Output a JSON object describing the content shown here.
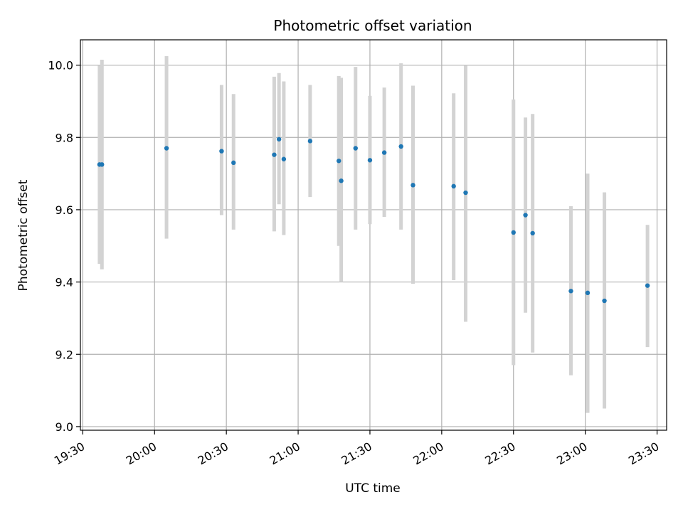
{
  "chart_data": {
    "type": "scatter",
    "title": "Photometric offset variation",
    "xlabel": "UTC time",
    "ylabel": "Photometric offset",
    "x_ticks": [
      "19:30",
      "20:00",
      "20:30",
      "21:00",
      "21:30",
      "22:00",
      "22:30",
      "23:00",
      "23:30"
    ],
    "y_ticks": [
      "9.0",
      "9.2",
      "9.4",
      "9.6",
      "9.8",
      "10.0"
    ],
    "xlim": [
      "19:30",
      "23:34"
    ],
    "ylim": [
      8.99,
      10.07
    ],
    "grid": true,
    "colors": {
      "point": "#1f77b4",
      "errorbar": "#d3d3d3",
      "grid": "#b0b0b0"
    },
    "points": [
      {
        "t": "19:38",
        "y": 9.725,
        "lo": 9.435,
        "hi": 10.015
      },
      {
        "t": "19:37",
        "y": 9.725,
        "lo": 9.45,
        "hi": 10.0
      },
      {
        "t": "20:05",
        "y": 9.77,
        "lo": 9.52,
        "hi": 10.025
      },
      {
        "t": "20:28",
        "y": 9.762,
        "lo": 9.585,
        "hi": 9.945
      },
      {
        "t": "20:33",
        "y": 9.73,
        "lo": 9.545,
        "hi": 9.92
      },
      {
        "t": "20:50",
        "y": 9.752,
        "lo": 9.54,
        "hi": 9.968
      },
      {
        "t": "20:52",
        "y": 9.795,
        "lo": 9.615,
        "hi": 9.978
      },
      {
        "t": "20:54",
        "y": 9.74,
        "lo": 9.53,
        "hi": 9.955
      },
      {
        "t": "21:05",
        "y": 9.79,
        "lo": 9.635,
        "hi": 9.945
      },
      {
        "t": "21:17",
        "y": 9.735,
        "lo": 9.5,
        "hi": 9.97
      },
      {
        "t": "21:18",
        "y": 9.68,
        "lo": 9.4,
        "hi": 9.965
      },
      {
        "t": "21:24",
        "y": 9.77,
        "lo": 9.545,
        "hi": 9.995
      },
      {
        "t": "21:30",
        "y": 9.737,
        "lo": 9.56,
        "hi": 9.915
      },
      {
        "t": "21:36",
        "y": 9.758,
        "lo": 9.58,
        "hi": 9.938
      },
      {
        "t": "21:43",
        "y": 9.775,
        "lo": 9.545,
        "hi": 10.005
      },
      {
        "t": "21:48",
        "y": 9.668,
        "lo": 9.395,
        "hi": 9.943
      },
      {
        "t": "22:05",
        "y": 9.665,
        "lo": 9.405,
        "hi": 9.922
      },
      {
        "t": "22:10",
        "y": 9.647,
        "lo": 9.29,
        "hi": 10.0
      },
      {
        "t": "22:30",
        "y": 9.537,
        "lo": 9.17,
        "hi": 9.905
      },
      {
        "t": "22:35",
        "y": 9.585,
        "lo": 9.315,
        "hi": 9.855
      },
      {
        "t": "22:38",
        "y": 9.535,
        "lo": 9.205,
        "hi": 9.865
      },
      {
        "t": "22:54",
        "y": 9.375,
        "lo": 9.142,
        "hi": 9.61
      },
      {
        "t": "23:01",
        "y": 9.37,
        "lo": 9.038,
        "hi": 9.7
      },
      {
        "t": "23:08",
        "y": 9.348,
        "lo": 9.05,
        "hi": 9.648
      },
      {
        "t": "23:26",
        "y": 9.39,
        "lo": 9.22,
        "hi": 9.558
      }
    ]
  }
}
